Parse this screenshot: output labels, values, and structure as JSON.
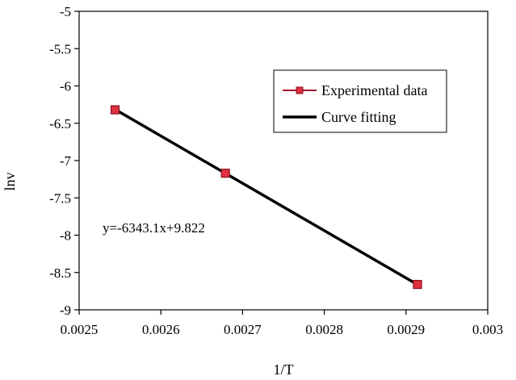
{
  "chart_data": {
    "type": "scatter",
    "xlabel": "1/T",
    "ylabel": "lnv",
    "xlim": [
      0.0025,
      0.003
    ],
    "ylim": [
      -9,
      -5
    ],
    "x_ticks": [
      0.0025,
      0.0026,
      0.0027,
      0.0028,
      0.0029,
      0.003
    ],
    "x_tick_labels": [
      "0.0025",
      "0.0026",
      "0.0027",
      "0.0028",
      "0.0029",
      "0.003"
    ],
    "y_ticks": [
      -9,
      -8.5,
      -8,
      -7.5,
      -7,
      -6.5,
      -6,
      -5.5,
      -5
    ],
    "y_tick_labels": [
      "-9",
      "-8.5",
      "-8",
      "-7.5",
      "-7",
      "-6.5",
      "-6",
      "-5.5",
      "-5"
    ],
    "grid": false,
    "legend_position": "upper-right",
    "series": [
      {
        "name": "Experimental data",
        "kind": "markers",
        "marker": "square",
        "color": "#cc2030",
        "x": [
          0.002544,
          0.002679,
          0.002914
        ],
        "y": [
          -6.32,
          -7.17,
          -8.66
        ]
      },
      {
        "name": "Curve fitting",
        "kind": "line",
        "color": "#000000",
        "x": [
          0.002544,
          0.002914
        ],
        "y": [
          -6.315,
          -8.662
        ]
      }
    ],
    "annotations": [
      {
        "text": "y=-6343.1x+9.822",
        "x": 0.002536,
        "y": -7.88
      }
    ]
  }
}
